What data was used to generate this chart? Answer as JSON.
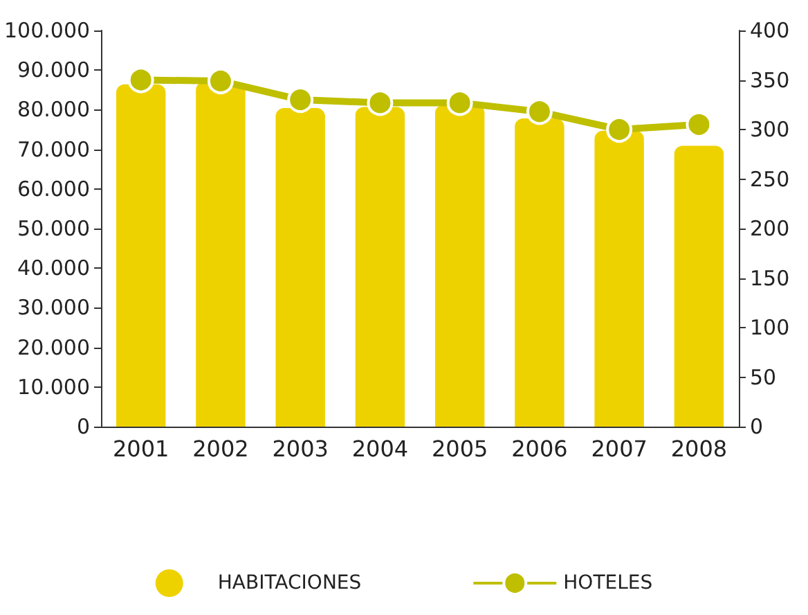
{
  "chart_data": {
    "type": "bar",
    "categories": [
      "2001",
      "2002",
      "2003",
      "2004",
      "2005",
      "2006",
      "2007",
      "2008"
    ],
    "series": [
      {
        "name": "HABITACIONES",
        "color": "#eed200",
        "values": [
          86400,
          87000,
          80400,
          80700,
          81200,
          77800,
          74700,
          70900
        ]
      },
      {
        "name": "HOTELES",
        "type": "line",
        "axis": "y2",
        "color": "#bfbf00",
        "values": [
          350,
          349,
          330,
          327,
          327,
          318,
          300,
          305
        ]
      }
    ],
    "ylim": [
      0,
      100000
    ],
    "yticks": [
      0,
      {
        "value": 10000,
        "label": "10.000"
      },
      {
        "value": 20000,
        "label": "20.000"
      },
      {
        "value": 30000,
        "label": "30.000"
      },
      {
        "value": 40000,
        "label": "40.000"
      },
      {
        "value": 50000,
        "label": "50.000"
      },
      {
        "value": 60000,
        "label": "60.000"
      },
      {
        "value": 70000,
        "label": "70.000"
      },
      {
        "value": 80000,
        "label": "80.000"
      },
      {
        "value": 90000,
        "label": "90.000"
      },
      {
        "value": 100000,
        "label": "100.000"
      }
    ],
    "y2lim": [
      0,
      400
    ],
    "y2ticks": [
      0,
      50,
      100,
      150,
      200,
      250,
      300,
      350,
      400
    ],
    "grid": false,
    "legend": "bottom",
    "marker": "circle"
  }
}
